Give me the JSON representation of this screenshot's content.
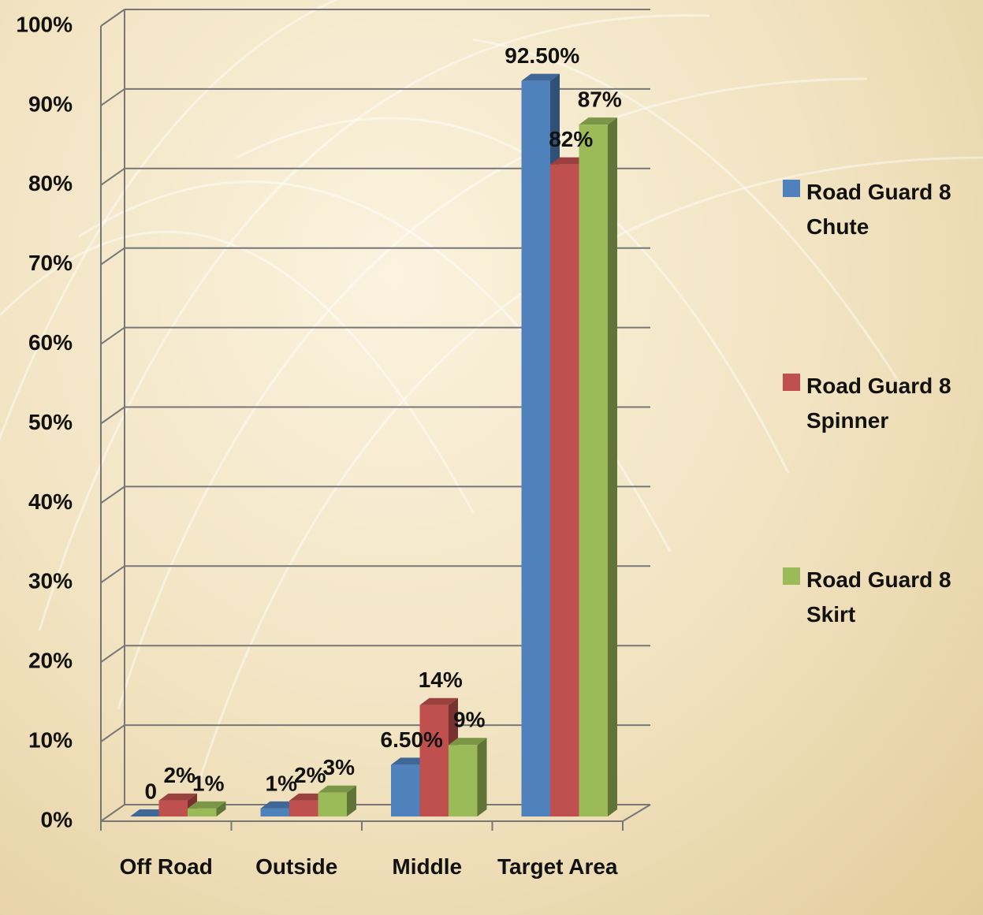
{
  "chart_data": {
    "type": "bar3d",
    "categories": [
      "Off Road",
      "Outside",
      "Middle",
      "Target Area"
    ],
    "series": [
      {
        "name": "Road Guard 8 Chute",
        "color": "#4f81bd",
        "values": [
          0,
          1,
          6.5,
          92.5
        ],
        "value_labels": [
          "0",
          "1%",
          "6.50%",
          "92.50%"
        ]
      },
      {
        "name": "Road Guard 8 Spinner",
        "color": "#c0504d",
        "values": [
          2,
          2,
          14,
          82
        ],
        "value_labels": [
          "2%",
          "2%",
          "14%",
          "82%"
        ]
      },
      {
        "name": "Road Guard 8 Skirt",
        "color": "#9bbb59",
        "values": [
          1,
          3,
          9,
          87
        ],
        "value_labels": [
          "1%",
          "3%",
          "9%",
          "87%"
        ]
      }
    ],
    "ylim": [
      0,
      100
    ],
    "yticks": [
      {
        "value": 0,
        "label": "0%"
      },
      {
        "value": 10,
        "label": "10%"
      },
      {
        "value": 20,
        "label": "20%"
      },
      {
        "value": 30,
        "label": "30%"
      },
      {
        "value": 40,
        "label": "40%"
      },
      {
        "value": 50,
        "label": "50%"
      },
      {
        "value": 60,
        "label": "60%"
      },
      {
        "value": 70,
        "label": "70%"
      },
      {
        "value": 80,
        "label": "80%"
      },
      {
        "value": 90,
        "label": "90%"
      },
      {
        "value": 100,
        "label": "100%"
      }
    ],
    "grid": true,
    "legend": "right"
  }
}
